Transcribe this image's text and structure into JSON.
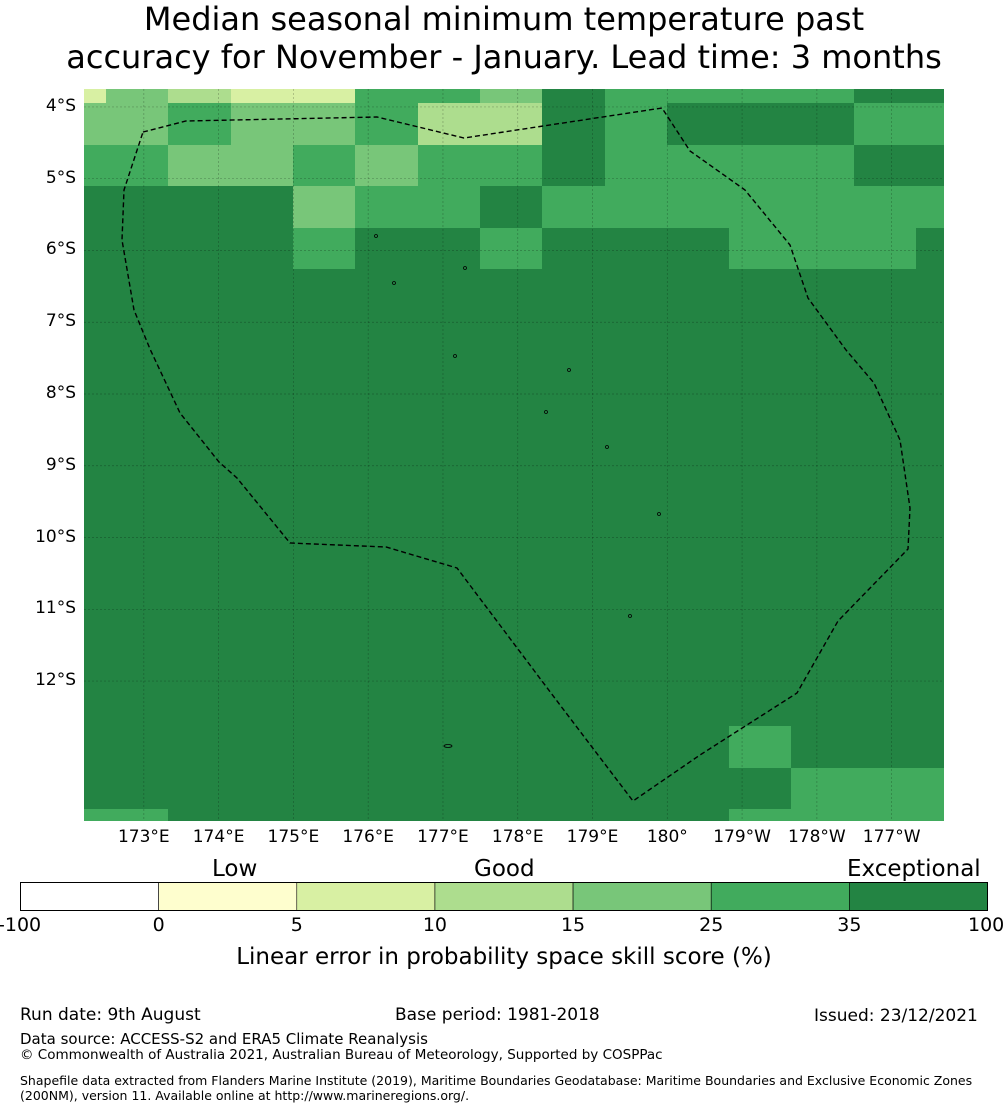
{
  "title": {
    "line1": "Median seasonal minimum temperature past",
    "line2": "accuracy for November - January. Lead time: 3 months"
  },
  "map": {
    "lat_labels": [
      "4°S",
      "5°S",
      "6°S",
      "7°S",
      "8°S",
      "9°S",
      "10°S",
      "11°S",
      "12°S"
    ],
    "lon_labels": [
      "173°E",
      "174°E",
      "175°E",
      "176°E",
      "177°E",
      "178°E",
      "179°E",
      "180°",
      "179°W",
      "178°W",
      "177°W"
    ],
    "extent_lon": [
      172.2,
      183.7
    ],
    "extent_lat": [
      -13.95,
      -3.75
    ],
    "boundary_line": "dashed black",
    "colors": {
      "c0": "#fefece",
      "c1": "#d8f0a3",
      "c2": "#addd8e",
      "c3": "#78c679",
      "c4": "#41ab5d",
      "c5": "#238443"
    }
  },
  "colorbar": {
    "category_labels": [
      "Low",
      "Good",
      "Exceptional"
    ],
    "ticks": [
      "-100",
      "0",
      "5",
      "10",
      "15",
      "25",
      "35",
      "100"
    ],
    "colors": [
      "#ffffff",
      "#fefece",
      "#d8f0a3",
      "#addd8e",
      "#78c679",
      "#41ab5d",
      "#238443"
    ],
    "caption": "Linear error in probability space skill score (%)"
  },
  "footer": {
    "run_date": "Run date: 9th August",
    "base_period": "Base period: 1981-2018",
    "issued": "Issued: 23/12/2021",
    "data_source": "Data source: ACCESS-S2 and ERA5 Climate Reanalysis",
    "copyright": "© Commonwealth of Australia 2021, Australian Bureau of Meteorology, Supported by COSPPac",
    "shapefile": "Shapefile data extracted from Flanders Marine Institute (2019), Maritime Boundaries Geodatabase: Maritime Boundaries and Exclusive Economic Zones (200NM), version 11. Available online at http://www.marineregions.org/."
  }
}
